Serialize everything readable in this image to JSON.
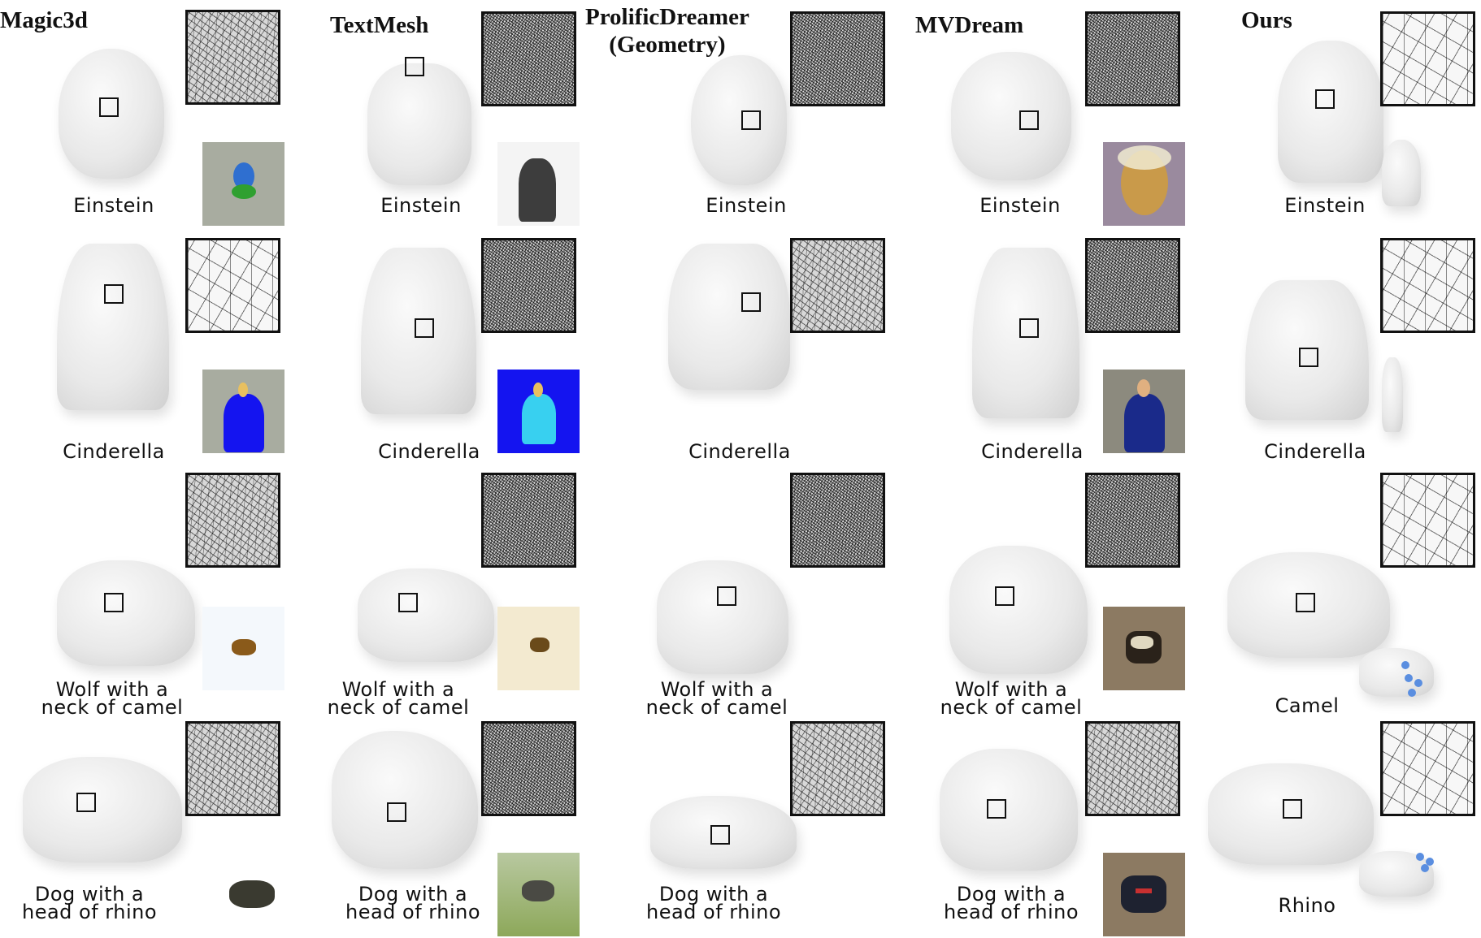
{
  "columns": [
    {
      "title": "Magic3d"
    },
    {
      "title": "TextMesh"
    },
    {
      "title": "ProlificDreamer\n(Geometry)"
    },
    {
      "title": "MVDream"
    },
    {
      "title": "Ours"
    }
  ],
  "rows": [
    {
      "captions": [
        "Einstein",
        "Einstein",
        "Einstein",
        "Einstein",
        "Einstein"
      ]
    },
    {
      "captions": [
        "Cinderella",
        "Cinderella",
        "Cinderella",
        "Cinderella",
        "Cinderella"
      ]
    },
    {
      "captions": [
        "Wolf with a\nneck of camel",
        "Wolf with a\nneck of camel",
        "Wolf with a\nneck of camel",
        "Wolf with a\nneck of camel",
        "Camel"
      ]
    },
    {
      "captions": [
        "Dog with a\nhead of rhino",
        "Dog with a\nhead of rhino",
        "Dog with a\nhead of rhino",
        "Dog with a\nhead of rhino",
        "Rhino"
      ]
    }
  ],
  "colors": {
    "mesh_gray": "#e6e6e6",
    "ref_gray": "#a8aca0",
    "ref_blue": "#1414f0",
    "ref_cream": "#f3ead0",
    "ref_brown": "#8c7a62",
    "ref_green": "#8da85a",
    "ref_purple": "#9a8a9e",
    "skeleton_blue": "#5a8ee0"
  }
}
